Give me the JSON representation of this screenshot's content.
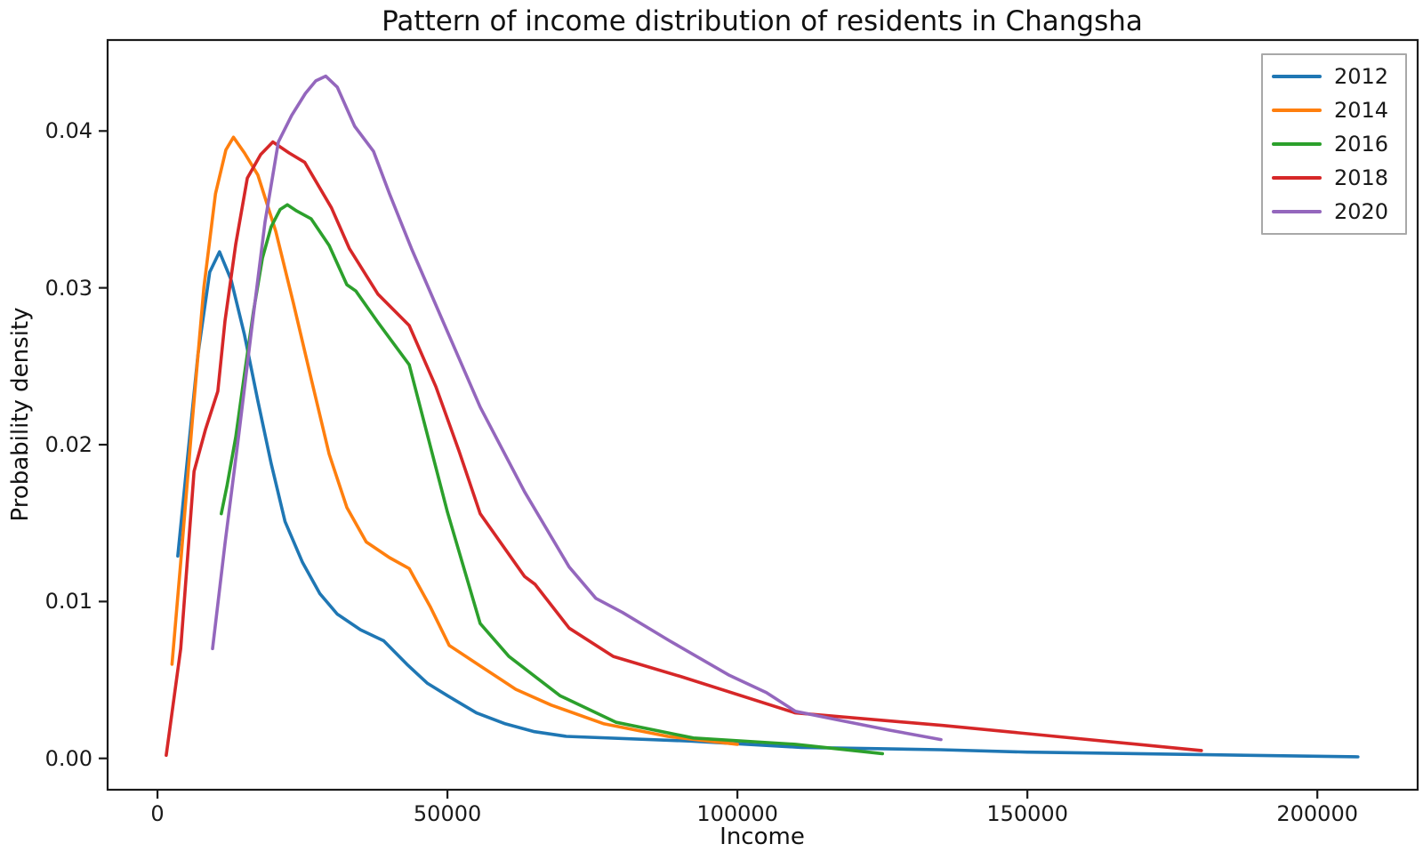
{
  "chart_data": {
    "type": "line",
    "title": "Pattern of income distribution of residents in Changsha",
    "xlabel": "Income",
    "ylabel": "Probability density",
    "xlim": [
      -8600,
      217300
    ],
    "ylim": [
      -0.002,
      0.0458
    ],
    "x_ticks": [
      0,
      50000,
      100000,
      150000,
      200000
    ],
    "x_tick_labels": [
      "0",
      "50000",
      "100000",
      "150000",
      "200000"
    ],
    "y_ticks": [
      0,
      0.01,
      0.02,
      0.03,
      0.04
    ],
    "y_tick_labels": [
      "0.00",
      "0.01",
      "0.02",
      "0.03",
      "0.04"
    ],
    "grid": false,
    "legend": {
      "position": "upper right",
      "entries": [
        "2012",
        "2014",
        "2016",
        "2018",
        "2020"
      ]
    },
    "series": [
      {
        "name": "2012",
        "color": "#1f77b4",
        "points": [
          [
            3500,
            0.0129
          ],
          [
            5000,
            0.0185
          ],
          [
            7000,
            0.0258
          ],
          [
            9000,
            0.031
          ],
          [
            10700,
            0.0323
          ],
          [
            12700,
            0.0305
          ],
          [
            15000,
            0.027
          ],
          [
            17300,
            0.0228
          ],
          [
            19600,
            0.0188
          ],
          [
            22000,
            0.0151
          ],
          [
            25000,
            0.0125
          ],
          [
            28000,
            0.0105
          ],
          [
            31000,
            0.0092
          ],
          [
            35000,
            0.0082
          ],
          [
            39000,
            0.0075
          ],
          [
            43000,
            0.006
          ],
          [
            46500,
            0.0048
          ],
          [
            50000,
            0.004
          ],
          [
            55000,
            0.0029
          ],
          [
            60000,
            0.0022
          ],
          [
            65000,
            0.0017
          ],
          [
            70500,
            0.0014
          ],
          [
            92000,
            0.0011
          ],
          [
            111000,
            0.0007
          ],
          [
            135000,
            0.00055
          ],
          [
            150000,
            0.0004
          ],
          [
            207000,
            0.0001
          ]
        ]
      },
      {
        "name": "2014",
        "color": "#ff7f0e",
        "points": [
          [
            2500,
            0.006
          ],
          [
            4000,
            0.0125
          ],
          [
            6000,
            0.0215
          ],
          [
            8000,
            0.03
          ],
          [
            10000,
            0.036
          ],
          [
            11800,
            0.0388
          ],
          [
            13100,
            0.0396
          ],
          [
            15000,
            0.0386
          ],
          [
            17300,
            0.0372
          ],
          [
            20400,
            0.0336
          ],
          [
            23450,
            0.029
          ],
          [
            26500,
            0.0242
          ],
          [
            29600,
            0.0194
          ],
          [
            32650,
            0.016
          ],
          [
            36000,
            0.0138
          ],
          [
            40000,
            0.0128
          ],
          [
            43400,
            0.0121
          ],
          [
            47000,
            0.0097
          ],
          [
            50300,
            0.0072
          ],
          [
            55650,
            0.0059
          ],
          [
            61800,
            0.0044
          ],
          [
            67900,
            0.0034
          ],
          [
            77000,
            0.0022
          ],
          [
            88000,
            0.0014
          ],
          [
            100000,
            0.0009
          ]
        ]
      },
      {
        "name": "2016",
        "color": "#2ca02c",
        "points": [
          [
            11000,
            0.0156
          ],
          [
            12000,
            0.0174
          ],
          [
            13500,
            0.0205
          ],
          [
            15000,
            0.0245
          ],
          [
            16550,
            0.0285
          ],
          [
            18100,
            0.0319
          ],
          [
            19600,
            0.0339
          ],
          [
            21150,
            0.035
          ],
          [
            22400,
            0.0353
          ],
          [
            24000,
            0.0349
          ],
          [
            26500,
            0.0344
          ],
          [
            29600,
            0.0327
          ],
          [
            32650,
            0.0302
          ],
          [
            34200,
            0.0298
          ],
          [
            38000,
            0.0278
          ],
          [
            43400,
            0.0251
          ],
          [
            50000,
            0.0157
          ],
          [
            55650,
            0.0086
          ],
          [
            60600,
            0.0065
          ],
          [
            69400,
            0.004
          ],
          [
            79100,
            0.0023
          ],
          [
            92400,
            0.0013
          ],
          [
            110000,
            0.0009
          ],
          [
            125000,
            0.0003
          ]
        ]
      },
      {
        "name": "2018",
        "color": "#d62728",
        "points": [
          [
            1500,
            0.0002
          ],
          [
            4000,
            0.007
          ],
          [
            6300,
            0.0183
          ],
          [
            8300,
            0.021
          ],
          [
            10400,
            0.0234
          ],
          [
            11650,
            0.0279
          ],
          [
            13500,
            0.0328
          ],
          [
            15500,
            0.037
          ],
          [
            17800,
            0.0385
          ],
          [
            19900,
            0.0393
          ],
          [
            22700,
            0.0386
          ],
          [
            25400,
            0.038
          ],
          [
            30000,
            0.0351
          ],
          [
            33100,
            0.0325
          ],
          [
            38000,
            0.0296
          ],
          [
            43400,
            0.0276
          ],
          [
            48000,
            0.0237
          ],
          [
            52000,
            0.0196
          ],
          [
            55650,
            0.0156
          ],
          [
            63300,
            0.0116
          ],
          [
            65100,
            0.0111
          ],
          [
            71000,
            0.0083
          ],
          [
            78600,
            0.0065
          ],
          [
            90400,
            0.0052
          ],
          [
            110000,
            0.0029
          ],
          [
            135400,
            0.0021
          ],
          [
            180000,
            0.0005
          ]
        ]
      },
      {
        "name": "2020",
        "color": "#9467bd",
        "points": [
          [
            9500,
            0.007
          ],
          [
            11650,
            0.0137
          ],
          [
            14000,
            0.0206
          ],
          [
            16250,
            0.0274
          ],
          [
            18550,
            0.0342
          ],
          [
            20850,
            0.0393
          ],
          [
            23150,
            0.041
          ],
          [
            25500,
            0.0424
          ],
          [
            27300,
            0.0432
          ],
          [
            29000,
            0.0435
          ],
          [
            31000,
            0.0428
          ],
          [
            34000,
            0.0403
          ],
          [
            37250,
            0.0387
          ],
          [
            40000,
            0.036
          ],
          [
            43800,
            0.0325
          ],
          [
            48000,
            0.0289
          ],
          [
            55650,
            0.0224
          ],
          [
            63300,
            0.017
          ],
          [
            71000,
            0.0122
          ],
          [
            75600,
            0.0102
          ],
          [
            80200,
            0.0093
          ],
          [
            88300,
            0.0075
          ],
          [
            98600,
            0.0053
          ],
          [
            105000,
            0.0042
          ],
          [
            110000,
            0.003
          ],
          [
            118000,
            0.0024
          ],
          [
            126200,
            0.0018
          ],
          [
            135100,
            0.0012
          ]
        ]
      }
    ]
  }
}
